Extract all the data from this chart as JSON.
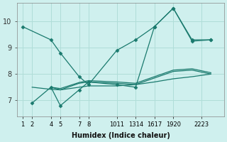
{
  "background_color": "#cff0ee",
  "grid_color": "#b0ddd8",
  "line_color": "#1a7a6e",
  "xlabel": "Humidex (Indice chaleur)",
  "yticks": [
    7,
    8,
    9,
    10
  ],
  "ylim": [
    6.4,
    10.7
  ],
  "xlim": [
    -0.3,
    10.7
  ],
  "xtick_labels": [
    "1",
    "2",
    "4",
    "5",
    "7",
    "8",
    "1011",
    "1314",
    "1617",
    "1920",
    "2223"
  ],
  "lines": [
    {
      "x": [
        0,
        1.5,
        2,
        3,
        3.5,
        5,
        6,
        7,
        8,
        9,
        10
      ],
      "y": [
        9.8,
        9.3,
        8.8,
        7.9,
        7.6,
        8.9,
        9.3,
        9.8,
        10.5,
        9.3,
        9.3
      ],
      "marker": "D",
      "markersize": 2.5
    },
    {
      "x": [
        0.5,
        1.5,
        2,
        3,
        3.5,
        5,
        6,
        7,
        8,
        9,
        10
      ],
      "y": [
        6.9,
        7.5,
        6.8,
        7.4,
        7.7,
        7.6,
        7.5,
        9.8,
        10.5,
        9.25,
        9.3
      ],
      "marker": "D",
      "markersize": 2.5
    },
    {
      "x": [
        1.5,
        2,
        3,
        3.5,
        5,
        6,
        7,
        8,
        9,
        10
      ],
      "y": [
        7.5,
        7.4,
        7.65,
        7.7,
        7.65,
        7.6,
        7.85,
        8.1,
        8.15,
        8.0
      ],
      "marker": null,
      "markersize": 0
    },
    {
      "x": [
        1.5,
        2,
        3,
        3.5,
        5,
        6,
        7,
        8,
        9,
        10
      ],
      "y": [
        7.5,
        7.45,
        7.68,
        7.75,
        7.7,
        7.65,
        7.9,
        8.15,
        8.2,
        8.05
      ],
      "marker": null,
      "markersize": 0
    },
    {
      "x": [
        0.5,
        1.5,
        2,
        3,
        3.5,
        5,
        6,
        7,
        8,
        9,
        10
      ],
      "y": [
        7.5,
        7.42,
        7.4,
        7.5,
        7.55,
        7.55,
        7.6,
        7.7,
        7.82,
        7.9,
        8.0
      ],
      "marker": null,
      "markersize": 0
    }
  ],
  "xtick_groups_pos": [
    0,
    0.5,
    1.5,
    2,
    3,
    3.5,
    5,
    6,
    7,
    8,
    9.5
  ],
  "xtick_groups_labels": [
    "1",
    "2",
    "4",
    "5",
    "7",
    "8",
    "1011",
    "1314",
    "1617",
    "1920",
    "2223"
  ]
}
